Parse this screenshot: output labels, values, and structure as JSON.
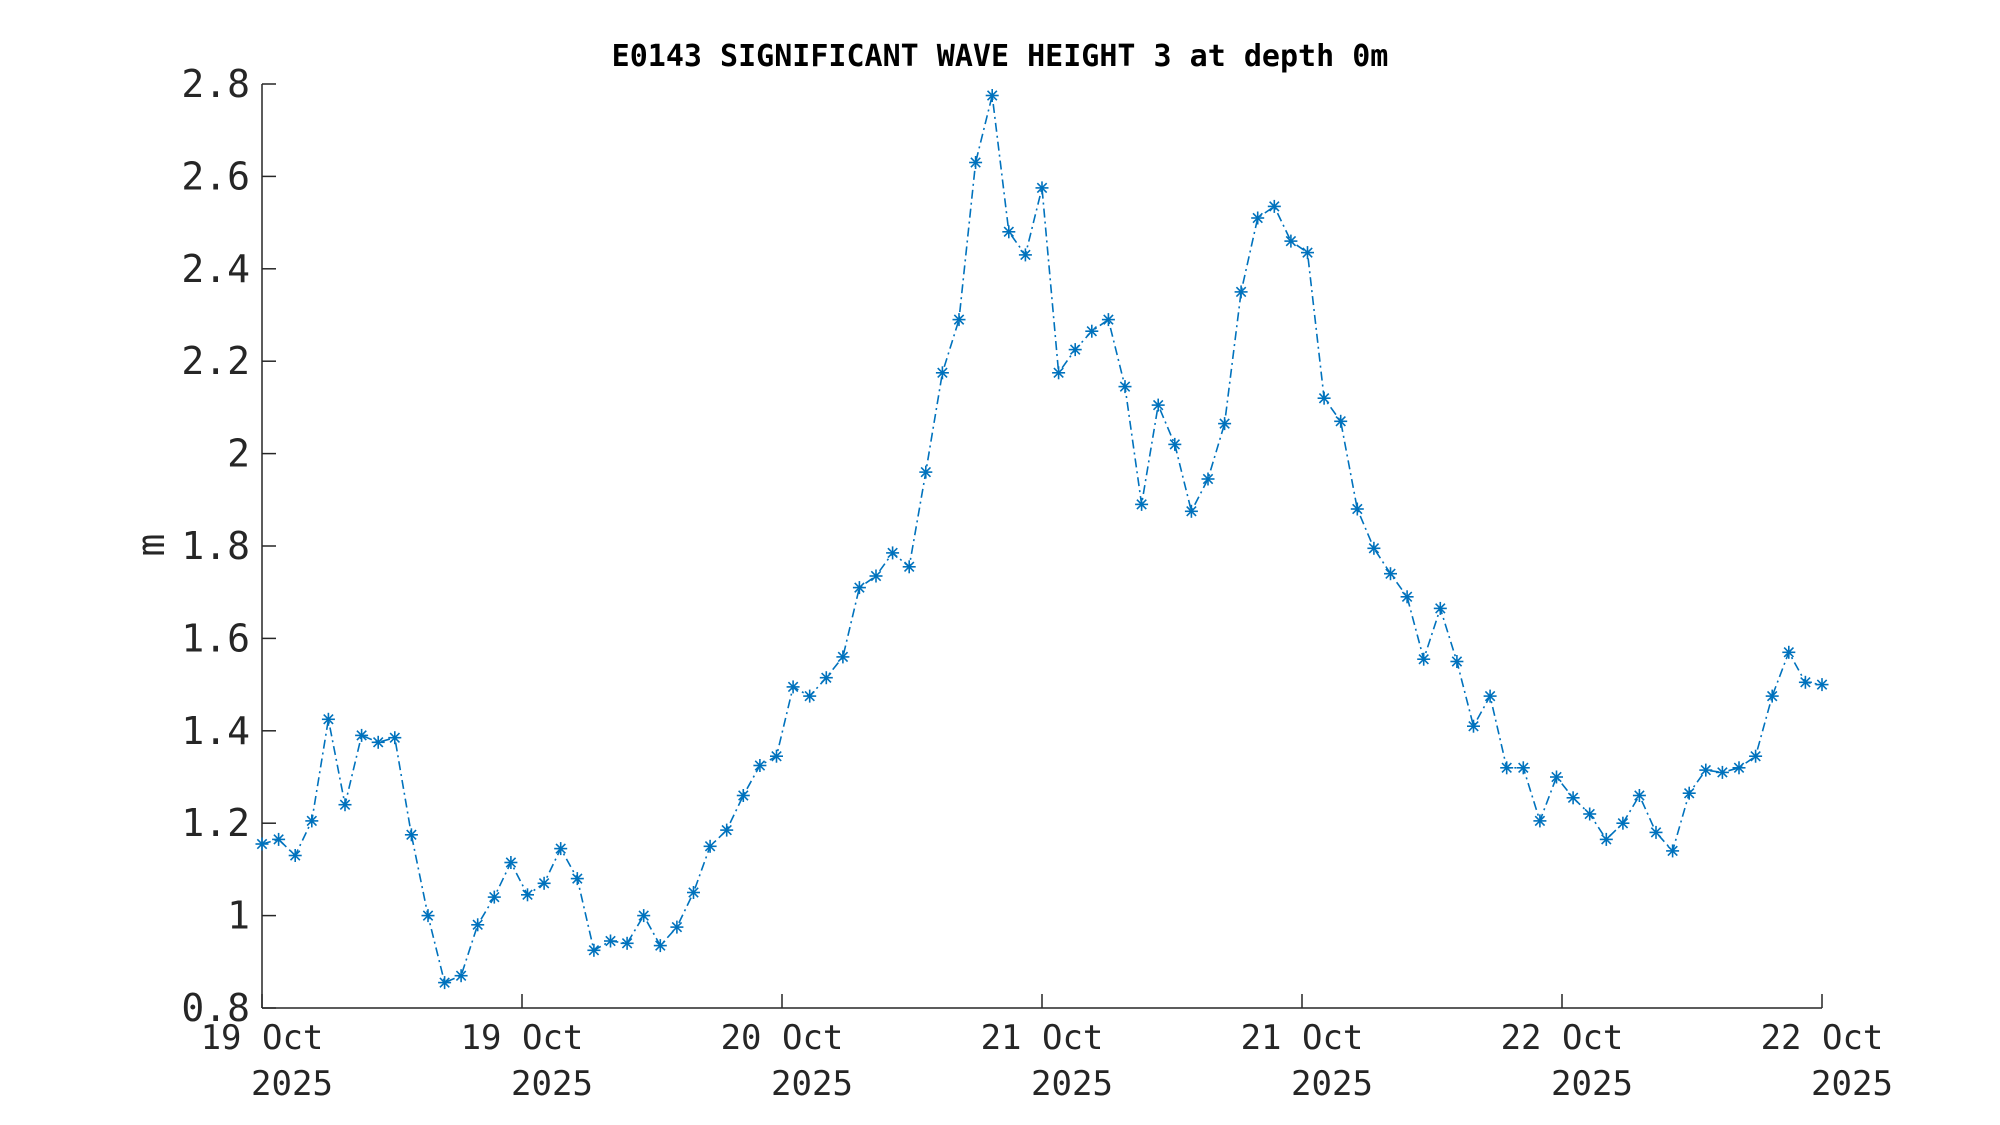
{
  "chart_data": {
    "type": "line",
    "title": "E0143 SIGNIFICANT WAVE HEIGHT 3 at depth 0m",
    "xlabel": "",
    "ylabel": "m",
    "ylim": [
      0.8,
      2.8
    ],
    "yticks": [
      "0.8",
      "1",
      "1.2",
      "1.4",
      "1.6",
      "1.8",
      "2",
      "2.2",
      "2.4",
      "2.6",
      "2.8"
    ],
    "xlim": [
      "19 Oct 2025 00:00",
      "22 Oct 2025 00:00"
    ],
    "xticks": [
      {
        "line1": "19 Oct",
        "line2": "2025"
      },
      {
        "line1": "19 Oct",
        "line2": "2025"
      },
      {
        "line1": "20 Oct",
        "line2": "2025"
      },
      {
        "line1": "21 Oct",
        "line2": "2025"
      },
      {
        "line1": "21 Oct",
        "line2": "2025"
      },
      {
        "line1": "22 Oct",
        "line2": "2025"
      },
      {
        "line1": "22 Oct",
        "line2": "2025"
      }
    ],
    "grid": false,
    "colors": {
      "series": "#0072BD",
      "axis": "#262626"
    },
    "series": [
      {
        "marker": "asterisk",
        "line_style": "dash-dot",
        "values": [
          1.155,
          1.165,
          1.13,
          1.205,
          1.425,
          1.24,
          1.39,
          1.375,
          1.385,
          1.175,
          1.0,
          0.855,
          0.87,
          0.98,
          1.04,
          1.115,
          1.045,
          1.07,
          1.145,
          1.08,
          0.925,
          0.945,
          0.94,
          1.0,
          0.935,
          0.975,
          1.05,
          1.15,
          1.185,
          1.26,
          1.325,
          1.345,
          1.495,
          1.475,
          1.515,
          1.56,
          1.71,
          1.735,
          1.785,
          1.755,
          1.96,
          2.175,
          2.29,
          2.63,
          2.775,
          2.48,
          2.43,
          2.575,
          2.175,
          2.225,
          2.265,
          2.29,
          2.145,
          1.89,
          2.105,
          2.02,
          1.875,
          1.945,
          2.065,
          2.35,
          2.51,
          2.535,
          2.46,
          2.435,
          2.12,
          2.07,
          1.88,
          1.795,
          1.74,
          1.69,
          1.555,
          1.665,
          1.55,
          1.41,
          1.475,
          1.32,
          1.32,
          1.205,
          1.3,
          1.255,
          1.22,
          1.165,
          1.2,
          1.26,
          1.18,
          1.14,
          1.265,
          1.315,
          1.31,
          1.32,
          1.345,
          1.475,
          1.57,
          1.505,
          1.5
        ]
      }
    ]
  }
}
